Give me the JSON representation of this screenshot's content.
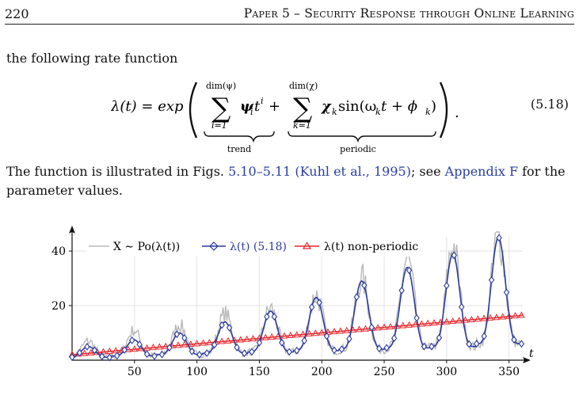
{
  "header": {
    "page_number": "220",
    "running_title": "Paper 5 – Security Response through Online Learning"
  },
  "intro": "the following rate function",
  "equation": {
    "lhs": "λ(t) = exp",
    "sum1_upper": "dim(ψ)",
    "sum1_lower": "i=1",
    "term1": "ψ",
    "term1_sub": "i",
    "term1_t": "t",
    "term1_sup": "i",
    "plus": "+",
    "sum2_upper": "dim(χ)",
    "sum2_lower": "k=1",
    "term2": "χ",
    "term2_sub": "k",
    "term2_rest": "sin(ω",
    "term2_sub2": "k",
    "term2_rest2": "t + ϕ",
    "term2_sub3": "k",
    "term2_end": ")",
    "period_dot": ".",
    "brace1_label": "trend",
    "brace2_label": "periodic",
    "number": "(5.18)"
  },
  "paragraph": {
    "t1": "The function is illustrated in Figs. ",
    "link1": "5.10–5.11",
    "t2": " ",
    "link2": "(Kuhl et al., 1995)",
    "t3": "; see ",
    "link3": "Appendix F",
    "t4": " for the parameter values."
  },
  "colors": {
    "observed": "#b8b8b8",
    "rate": "#2b3a9e",
    "nonperiodic": "#e8262a",
    "grid": "#e3e3e3",
    "axis": "#111111"
  },
  "chart_data": {
    "type": "line",
    "xlabel": "t",
    "ylabel": "",
    "xlim": [
      0,
      361
    ],
    "ylim": [
      0,
      47
    ],
    "x_ticks": [
      50,
      100,
      150,
      200,
      250,
      300,
      350
    ],
    "y_ticks": [
      20,
      40
    ],
    "grid": true,
    "legend_position": "top",
    "legend": [
      "X ∼ Po(λ(t))",
      "λ(t) (5.18)",
      "λ(t) non-periodic"
    ],
    "series": [
      {
        "name": "X ∼ Po(λ(t))",
        "style": "noisy gray line",
        "peak_t": [
          13,
          47,
          86,
          122,
          160,
          196,
          234,
          271,
          306,
          344
        ],
        "peak_values": [
          7,
          11,
          13,
          17,
          19,
          24,
          30,
          37,
          42,
          46
        ]
      },
      {
        "name": "λ(t) (5.18)",
        "style": "blue line with diamond markers",
        "trend": {
          "start": 2,
          "end": 16
        },
        "period": 36.5,
        "peak_t": [
          13,
          47,
          86,
          122,
          160,
          196,
          234,
          271,
          306,
          344
        ],
        "peak_values": [
          5,
          7.5,
          10,
          14,
          18,
          23,
          29,
          34,
          39,
          45
        ],
        "trough_values": [
          1,
          1.5,
          2,
          2.5,
          3,
          3.5,
          4,
          4.5,
          5,
          6
        ]
      },
      {
        "name": "λ(t) non-periodic",
        "style": "red line with triangle markers",
        "x": [
          0,
          350
        ],
        "values": [
          2,
          16
        ]
      }
    ]
  }
}
